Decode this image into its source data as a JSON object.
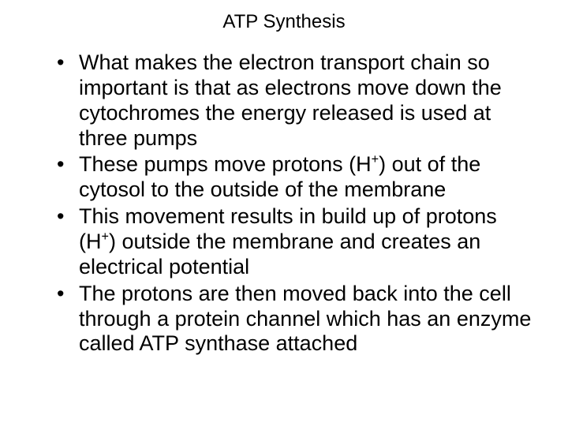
{
  "title": "ATP Synthesis",
  "bullets": [
    {
      "html": "What makes the electron transport chain so important is that as electrons move down the cytochromes the energy released is used at three pumps"
    },
    {
      "html": "These pumps move protons (H<sup>+</sup>) out of the cytosol to the outside of the membrane"
    },
    {
      "html": "This movement results in build up of protons (H<sup>+</sup>) outside the membrane and creates an electrical potential"
    },
    {
      "html": "The protons are then moved back into the cell through a protein channel which has an enzyme called ATP synthase attached"
    }
  ],
  "colors": {
    "background": "#ffffff",
    "text": "#000000"
  },
  "typography": {
    "title_fontsize": 24,
    "body_fontsize": 27,
    "font_family": "Arial"
  }
}
